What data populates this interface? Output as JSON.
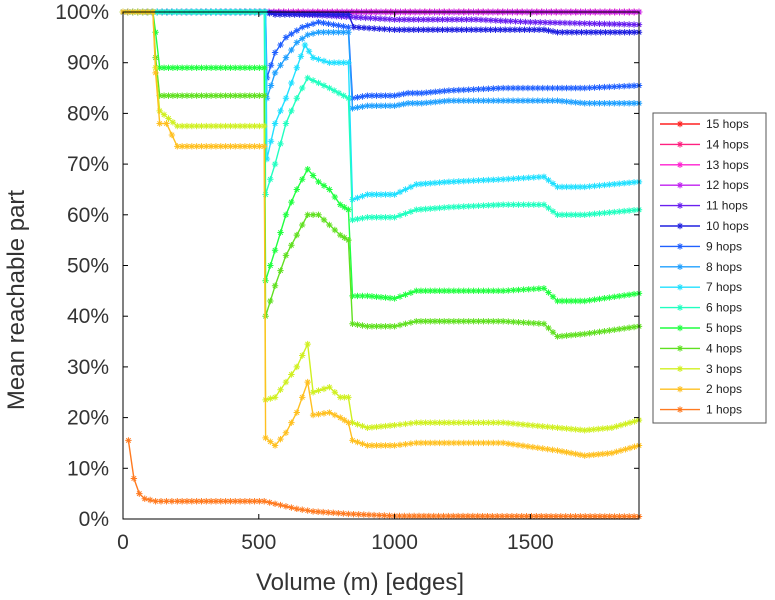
{
  "chart_data": {
    "type": "line",
    "title": "",
    "xlabel": "Volume (m) [edges]",
    "ylabel": "Mean reachable part",
    "xlim": [
      0,
      1900
    ],
    "ylim": [
      0,
      100
    ],
    "xticks": [
      0,
      500,
      1000,
      1500
    ],
    "xtick_labels": [
      "0",
      "500",
      "1000",
      "1500"
    ],
    "yticks": [
      0,
      10,
      20,
      30,
      40,
      50,
      60,
      70,
      80,
      90,
      100
    ],
    "ytick_labels": [
      "0%",
      "10%",
      "20%",
      "30%",
      "40%",
      "50%",
      "60%",
      "70%",
      "80%",
      "90%",
      "100%"
    ],
    "legend_position": "right",
    "series": [
      {
        "name": "15 hops",
        "color": "#ff2020",
        "points": [
          [
            0,
            100
          ],
          [
            1900,
            100
          ]
        ]
      },
      {
        "name": "14 hops",
        "color": "#ff2080",
        "points": [
          [
            0,
            100
          ],
          [
            1900,
            100
          ]
        ]
      },
      {
        "name": "13 hops",
        "color": "#ff20d0",
        "points": [
          [
            0,
            100
          ],
          [
            1900,
            100
          ]
        ]
      },
      {
        "name": "12 hops",
        "color": "#c020f0",
        "points": [
          [
            0,
            100
          ],
          [
            1900,
            100
          ]
        ]
      },
      {
        "name": "11 hops",
        "color": "#6a20f0",
        "points": [
          [
            0,
            100
          ],
          [
            520,
            100
          ],
          [
            1000,
            98.5
          ],
          [
            1300,
            98.5
          ],
          [
            1500,
            98
          ],
          [
            1900,
            97.5
          ]
        ]
      },
      {
        "name": "10 hops",
        "color": "#2020e0",
        "points": [
          [
            0,
            100
          ],
          [
            520,
            100
          ],
          [
            560,
            99.5
          ],
          [
            830,
            99.5
          ],
          [
            850,
            97
          ],
          [
            1000,
            96.5
          ],
          [
            1300,
            96.5
          ],
          [
            1550,
            96.5
          ],
          [
            1600,
            96
          ],
          [
            1900,
            96
          ]
        ]
      },
      {
        "name": "9 hops",
        "color": "#2060ff",
        "points": [
          [
            0,
            100
          ],
          [
            525,
            100
          ],
          [
            530,
            87
          ],
          [
            560,
            92
          ],
          [
            600,
            95
          ],
          [
            660,
            97
          ],
          [
            720,
            98
          ],
          [
            830,
            97
          ],
          [
            845,
            83
          ],
          [
            900,
            83.5
          ],
          [
            1000,
            83.5
          ],
          [
            1050,
            84
          ],
          [
            1100,
            84
          ],
          [
            1200,
            84.5
          ],
          [
            1400,
            85
          ],
          [
            1600,
            85
          ],
          [
            1700,
            85
          ],
          [
            1900,
            85.5
          ]
        ]
      },
      {
        "name": "8 hops",
        "color": "#20a0ff",
        "points": [
          [
            0,
            100
          ],
          [
            525,
            100
          ],
          [
            530,
            83
          ],
          [
            560,
            88
          ],
          [
            600,
            91
          ],
          [
            640,
            94
          ],
          [
            680,
            95.5
          ],
          [
            720,
            96
          ],
          [
            830,
            96
          ],
          [
            845,
            81
          ],
          [
            900,
            81.5
          ],
          [
            1000,
            81.5
          ],
          [
            1050,
            82
          ],
          [
            1100,
            82
          ],
          [
            1200,
            82.5
          ],
          [
            1400,
            82.5
          ],
          [
            1600,
            82.5
          ],
          [
            1700,
            82
          ],
          [
            1900,
            82
          ]
        ]
      },
      {
        "name": "7 hops",
        "color": "#20e0ff",
        "points": [
          [
            0,
            100
          ],
          [
            525,
            100
          ],
          [
            530,
            71
          ],
          [
            560,
            78
          ],
          [
            600,
            83
          ],
          [
            640,
            89
          ],
          [
            670,
            93.5
          ],
          [
            700,
            91
          ],
          [
            760,
            90
          ],
          [
            830,
            90
          ],
          [
            845,
            63
          ],
          [
            900,
            64
          ],
          [
            1000,
            64
          ],
          [
            1080,
            66
          ],
          [
            1200,
            66.5
          ],
          [
            1400,
            67
          ],
          [
            1550,
            67.5
          ],
          [
            1600,
            65.5
          ],
          [
            1700,
            65.5
          ],
          [
            1900,
            66.5
          ]
        ]
      },
      {
        "name": "6 hops",
        "color": "#20ffc0",
        "points": [
          [
            0,
            100
          ],
          [
            520,
            100
          ],
          [
            525,
            64
          ],
          [
            560,
            70
          ],
          [
            600,
            78
          ],
          [
            640,
            83
          ],
          [
            680,
            87
          ],
          [
            720,
            86
          ],
          [
            760,
            85
          ],
          [
            830,
            83
          ],
          [
            845,
            59
          ],
          [
            900,
            59.5
          ],
          [
            1000,
            59.5
          ],
          [
            1080,
            61
          ],
          [
            1200,
            61.5
          ],
          [
            1400,
            62
          ],
          [
            1550,
            62
          ],
          [
            1600,
            60
          ],
          [
            1700,
            60
          ],
          [
            1900,
            61
          ]
        ]
      },
      {
        "name": "5 hops",
        "color": "#20ff40",
        "points": [
          [
            0,
            100
          ],
          [
            110,
            100
          ],
          [
            120,
            96
          ],
          [
            135,
            89
          ],
          [
            200,
            89
          ],
          [
            520,
            89
          ],
          [
            525,
            47
          ],
          [
            560,
            53
          ],
          [
            600,
            60
          ],
          [
            640,
            65
          ],
          [
            680,
            69
          ],
          [
            720,
            66.5
          ],
          [
            760,
            65
          ],
          [
            800,
            62
          ],
          [
            830,
            61
          ],
          [
            845,
            44
          ],
          [
            900,
            44
          ],
          [
            1000,
            43.5
          ],
          [
            1080,
            45
          ],
          [
            1200,
            45
          ],
          [
            1400,
            45
          ],
          [
            1550,
            45.5
          ],
          [
            1600,
            43
          ],
          [
            1700,
            43
          ],
          [
            1900,
            44.5
          ]
        ]
      },
      {
        "name": "4 hops",
        "color": "#60e020",
        "points": [
          [
            0,
            100
          ],
          [
            110,
            100
          ],
          [
            120,
            91
          ],
          [
            135,
            83.5
          ],
          [
            200,
            83.5
          ],
          [
            520,
            83.5
          ],
          [
            525,
            40
          ],
          [
            560,
            46
          ],
          [
            600,
            52
          ],
          [
            640,
            56
          ],
          [
            680,
            60
          ],
          [
            720,
            60
          ],
          [
            760,
            58
          ],
          [
            800,
            56
          ],
          [
            830,
            55
          ],
          [
            845,
            38.5
          ],
          [
            900,
            38
          ],
          [
            1000,
            38
          ],
          [
            1080,
            39
          ],
          [
            1200,
            39
          ],
          [
            1400,
            39
          ],
          [
            1550,
            38.5
          ],
          [
            1600,
            36
          ],
          [
            1700,
            36.5
          ],
          [
            1900,
            38
          ]
        ]
      },
      {
        "name": "3 hops",
        "color": "#d0f020",
        "points": [
          [
            0,
            100
          ],
          [
            110,
            100
          ],
          [
            120,
            89
          ],
          [
            135,
            80.5
          ],
          [
            200,
            77.5
          ],
          [
            520,
            77.5
          ],
          [
            525,
            23.5
          ],
          [
            560,
            24
          ],
          [
            600,
            27
          ],
          [
            640,
            30
          ],
          [
            680,
            34.5
          ],
          [
            700,
            25
          ],
          [
            760,
            26
          ],
          [
            800,
            24
          ],
          [
            830,
            24
          ],
          [
            845,
            19
          ],
          [
            900,
            18
          ],
          [
            1000,
            18.5
          ],
          [
            1080,
            19
          ],
          [
            1200,
            19
          ],
          [
            1400,
            19
          ],
          [
            1600,
            18
          ],
          [
            1700,
            17.5
          ],
          [
            1800,
            18
          ],
          [
            1900,
            19.5
          ]
        ]
      },
      {
        "name": "2 hops",
        "color": "#ffc020",
        "points": [
          [
            0,
            100
          ],
          [
            110,
            100
          ],
          [
            120,
            88
          ],
          [
            135,
            78
          ],
          [
            160,
            78
          ],
          [
            200,
            73.5
          ],
          [
            520,
            73.5
          ],
          [
            525,
            16
          ],
          [
            560,
            14.5
          ],
          [
            600,
            17
          ],
          [
            640,
            21
          ],
          [
            680,
            27
          ],
          [
            700,
            20.5
          ],
          [
            760,
            21
          ],
          [
            800,
            20
          ],
          [
            830,
            19
          ],
          [
            845,
            15.5
          ],
          [
            900,
            14.5
          ],
          [
            1000,
            14.5
          ],
          [
            1080,
            15
          ],
          [
            1200,
            15
          ],
          [
            1400,
            15
          ],
          [
            1600,
            13.5
          ],
          [
            1700,
            12.5
          ],
          [
            1800,
            13
          ],
          [
            1900,
            14.5
          ]
        ]
      },
      {
        "name": "1 hops",
        "color": "#ff7a20",
        "points": [
          [
            20,
            15.5
          ],
          [
            40,
            8
          ],
          [
            60,
            5
          ],
          [
            80,
            4
          ],
          [
            120,
            3.5
          ],
          [
            200,
            3.5
          ],
          [
            520,
            3.5
          ],
          [
            560,
            3
          ],
          [
            640,
            2
          ],
          [
            700,
            1.5
          ],
          [
            830,
            1
          ],
          [
            1000,
            0.6
          ],
          [
            1900,
            0.5
          ]
        ]
      }
    ]
  }
}
